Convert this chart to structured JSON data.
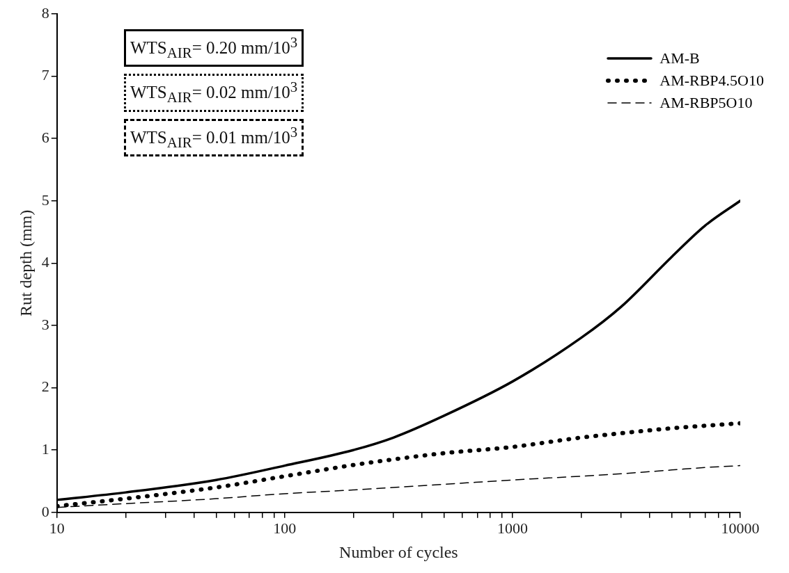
{
  "chart_data": {
    "type": "line",
    "xlabel": "Number of cycles",
    "ylabel": "Rut depth (mm)",
    "log": "x",
    "grid": false,
    "legend": "top right",
    "marker": "none",
    "xlim": [
      10,
      10000
    ],
    "xticks": [
      10,
      {
        "value": 20,
        "label": null
      },
      {
        "value": 30,
        "label": null
      },
      {
        "value": 40,
        "label": null
      },
      {
        "value": 50,
        "label": null
      },
      {
        "value": 60,
        "label": null
      },
      {
        "value": 70,
        "label": null
      },
      {
        "value": 80,
        "label": null
      },
      {
        "value": 90,
        "label": null
      },
      100,
      {
        "value": 200,
        "label": null
      },
      {
        "value": 300,
        "label": null
      },
      {
        "value": 400,
        "label": null
      },
      {
        "value": 500,
        "label": null
      },
      {
        "value": 600,
        "label": null
      },
      {
        "value": 700,
        "label": null
      },
      {
        "value": 800,
        "label": null
      },
      {
        "value": 900,
        "label": null
      },
      1000,
      {
        "value": 2000,
        "label": null
      },
      {
        "value": 3000,
        "label": null
      },
      {
        "value": 4000,
        "label": null
      },
      {
        "value": 5000,
        "label": null
      },
      {
        "value": 6000,
        "label": null
      },
      {
        "value": 7000,
        "label": null
      },
      {
        "value": 8000,
        "label": null
      },
      {
        "value": 9000,
        "label": null
      },
      10000
    ],
    "ylim": [
      0,
      8
    ],
    "yticks": [
      0,
      1,
      2,
      3,
      4,
      5,
      6,
      7,
      8
    ],
    "x": [
      10,
      20,
      50,
      100,
      200,
      300,
      500,
      1000,
      2000,
      3000,
      5000,
      7000,
      10000
    ],
    "series": [
      {
        "name": "AM-B",
        "color": "#000000",
        "line_style": "solid",
        "values": [
          0.2,
          0.32,
          0.52,
          0.75,
          1.0,
          1.2,
          1.55,
          2.1,
          2.8,
          3.3,
          4.1,
          4.6,
          5.0
        ]
      },
      {
        "name": "AM-RBP4.5O10",
        "color": "#000000",
        "line_style": "dotted",
        "values": [
          0.1,
          0.22,
          0.4,
          0.58,
          0.76,
          0.85,
          0.95,
          1.05,
          1.2,
          1.27,
          1.35,
          1.39,
          1.43
        ]
      },
      {
        "name": "AM-RBP5O10",
        "color": "#000000",
        "line_style": "dashed",
        "values": [
          0.08,
          0.14,
          0.22,
          0.3,
          0.36,
          0.4,
          0.45,
          0.52,
          0.58,
          0.62,
          0.68,
          0.72,
          0.75
        ]
      }
    ],
    "annotations": [
      "WTS$_{AIR}$= 0.20 mm/10$^{3}$",
      "WTS$_{AIR}$= 0.02 mm/10$^{3}$",
      "WTS$_{AIR}$= 0.01 mm/10$^{3}$"
    ]
  }
}
